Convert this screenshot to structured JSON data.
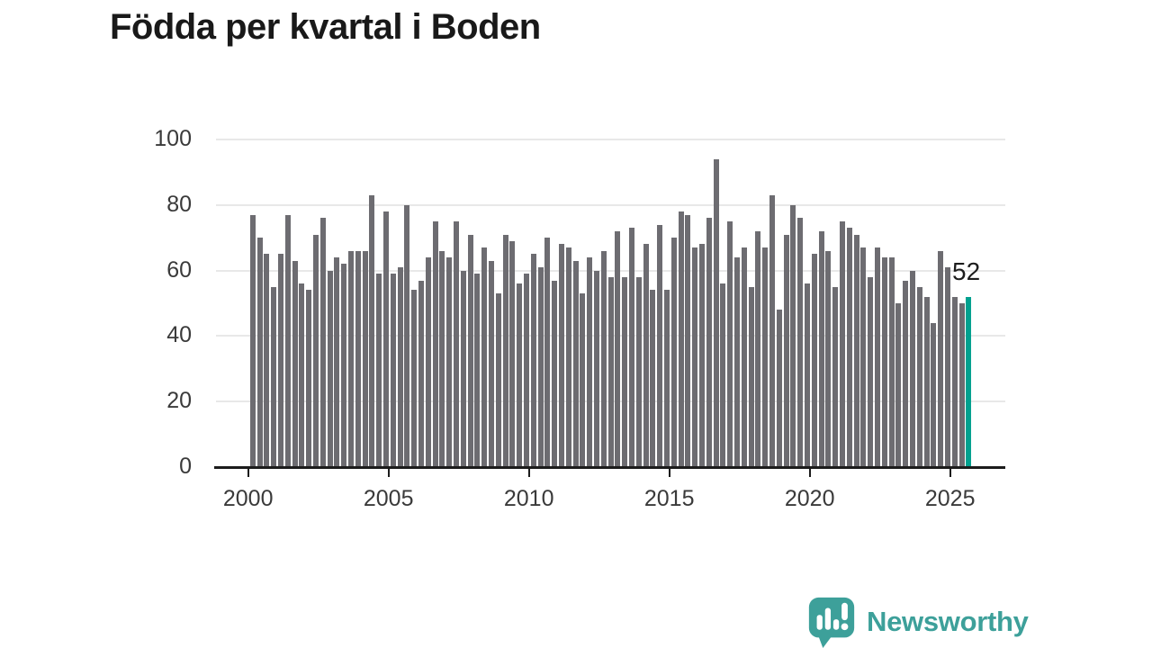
{
  "title": "Födda per kvartal i Boden",
  "chart_data": {
    "type": "bar",
    "title": "Födda per kvartal i Boden",
    "x_start": "2000-Q1",
    "x_end": "2025-Q3",
    "frequency": "quarterly",
    "values": [
      77,
      70,
      65,
      55,
      65,
      77,
      63,
      56,
      54,
      71,
      76,
      60,
      64,
      62,
      66,
      66,
      66,
      83,
      59,
      78,
      59,
      61,
      80,
      54,
      57,
      64,
      75,
      66,
      64,
      75,
      60,
      71,
      59,
      67,
      63,
      53,
      71,
      69,
      56,
      59,
      65,
      61,
      70,
      57,
      68,
      67,
      63,
      53,
      64,
      60,
      66,
      58,
      72,
      58,
      73,
      58,
      68,
      54,
      74,
      54,
      70,
      78,
      77,
      67,
      68,
      76,
      94,
      56,
      75,
      64,
      67,
      55,
      72,
      67,
      83,
      48,
      71,
      80,
      76,
      56,
      65,
      72,
      66,
      55,
      75,
      73,
      71,
      67,
      58,
      67,
      64,
      64,
      50,
      57,
      60,
      55,
      52,
      44,
      66,
      61,
      52,
      50,
      52
    ],
    "highlight": {
      "index": 102,
      "quarter": "2025-Q3",
      "value": 52,
      "label": "52"
    },
    "x_tick_labels": [
      "2000",
      "2005",
      "2010",
      "2015",
      "2020",
      "2025"
    ],
    "y_tick_labels": [
      "0",
      "20",
      "40",
      "60",
      "80",
      "100"
    ],
    "ylim": [
      0,
      100
    ],
    "grid": "horizontal",
    "legend": "none",
    "bar_color": "#6d6c71",
    "highlight_color": "#00a18f",
    "gridline_color": "#e8e8e8",
    "axis_color": "#1c1c1c"
  },
  "branding": {
    "name": "Newsworthy",
    "icon": "newsworthy-speech-bubble-barchart-icon",
    "teal": "#3da09a"
  }
}
